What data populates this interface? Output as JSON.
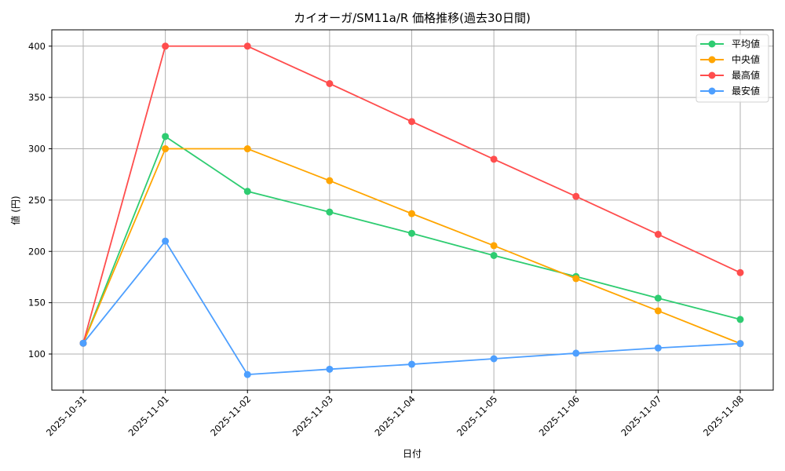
{
  "chart_data": {
    "type": "line",
    "title": "カイオーガ/SM11a/R 価格推移(過去30日間)",
    "xlabel": "日付",
    "ylabel": "値 (円)",
    "x": [
      "2025-10-31",
      "2025-11-01",
      "2025-11-02",
      "2025-11-03",
      "2025-11-04",
      "2025-11-05",
      "2025-11-06",
      "2025-11-07",
      "2025-11-08"
    ],
    "ylim": [
      64.8,
      415.9
    ],
    "yticks": [
      100,
      150,
      200,
      250,
      300,
      350,
      400
    ],
    "grid": true,
    "legend_position": "upper right",
    "series": [
      {
        "name": "平均値",
        "color": "#2ecc71",
        "values": [
          110.5,
          312,
          258.5,
          238.3,
          217.6,
          196,
          175.5,
          154.4,
          133.7
        ]
      },
      {
        "name": "中央値",
        "color": "#ffa500",
        "values": [
          110.5,
          300,
          300,
          268.9,
          236.8,
          205.6,
          173.5,
          142.1,
          110.2
        ]
      },
      {
        "name": "最高値",
        "color": "#ff4d4d",
        "values": [
          110.5,
          400,
          400,
          363.5,
          326.5,
          289.8,
          253.6,
          216.6,
          179.3
        ]
      },
      {
        "name": "最安値",
        "color": "#4d9fff",
        "values": [
          110.5,
          210,
          80,
          85.2,
          90,
          95.4,
          100.8,
          105.9,
          110.2
        ]
      }
    ]
  },
  "legend": {
    "items": [
      "平均値",
      "中央値",
      "最高値",
      "最安値"
    ]
  }
}
